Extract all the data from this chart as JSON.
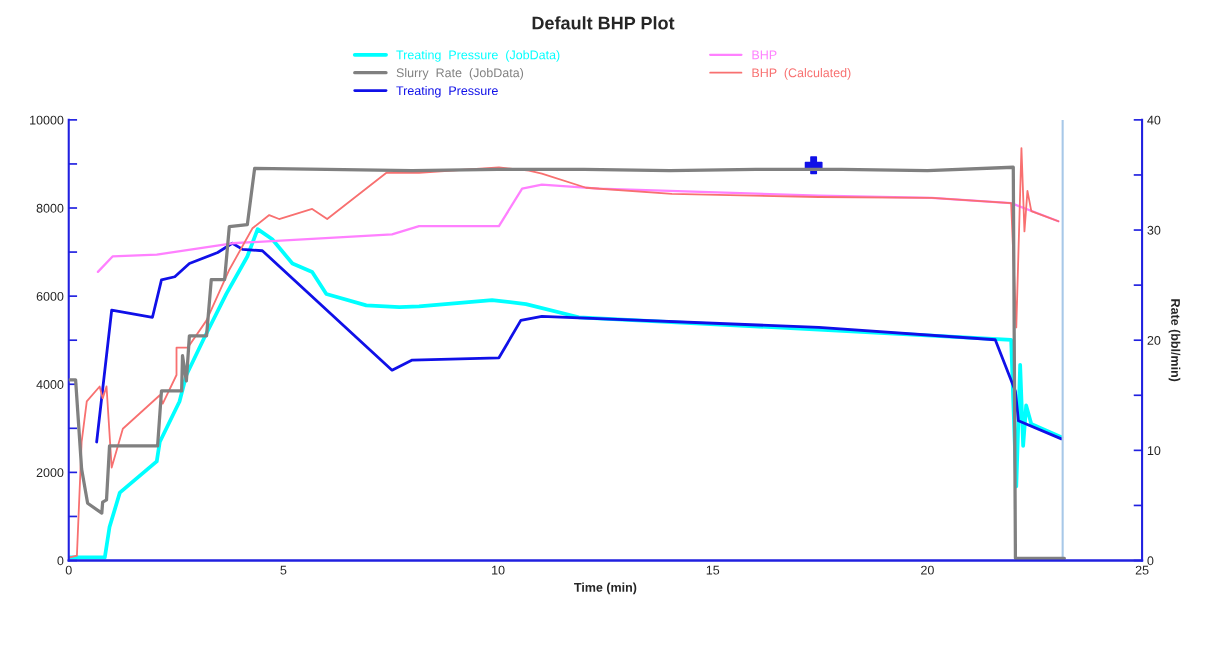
{
  "chart_data": {
    "type": "line",
    "title": "Default BHP Plot",
    "xlabel": "Time (min)",
    "y2label": "Rate (bbl/min)",
    "xlim": [
      0,
      25
    ],
    "xticks": [
      0,
      5,
      10,
      15,
      20,
      25
    ],
    "ylim": [
      0,
      10000
    ],
    "yticks": [
      0,
      {
        "value": 1000,
        "label": null
      },
      2000,
      {
        "value": 3000,
        "label": null
      },
      4000,
      {
        "value": 5000,
        "label": null
      },
      6000,
      {
        "value": 7000,
        "label": null
      },
      8000,
      {
        "value": 9000,
        "label": null
      },
      10000
    ],
    "y2lim": [
      0,
      40
    ],
    "y2ticks": [
      0,
      {
        "value": 5,
        "label": null
      },
      10,
      {
        "value": 15,
        "label": null
      },
      20,
      {
        "value": 25,
        "label": null
      },
      30,
      {
        "value": 35,
        "label": null
      },
      40
    ],
    "legend": "top",
    "grid": false,
    "marker": "none",
    "ref_lines": [
      {
        "axis": "x",
        "value": 23.15,
        "color": "#a8c8e8"
      }
    ],
    "series": [
      {
        "name": "Treating  Pressure  (JobData)",
        "color": "#00ffff",
        "x": [
          0.02,
          0.84,
          0.95,
          1.19,
          2.05,
          2.12,
          2.58,
          2.74,
          3.16,
          3.67,
          4.16,
          4.4,
          4.74,
          5.21,
          5.67,
          6.0,
          6.93,
          7.7,
          8.16,
          9.86,
          10.65,
          11.88,
          17.47,
          21.95,
          22.07,
          22.16,
          22.23,
          22.3,
          22.42,
          23.12
        ],
        "values": [
          70,
          70,
          760,
          1540,
          2250,
          2690,
          3610,
          4210,
          5060,
          6050,
          6900,
          7520,
          7290,
          6740,
          6550,
          6050,
          5790,
          5750,
          5770,
          5910,
          5820,
          5520,
          5240,
          5010,
          1680,
          4440,
          2600,
          3520,
          3100,
          2800
        ]
      },
      {
        "name": "Slurry  Rate  (JobData)",
        "color": "#808080",
        "axis": "y2",
        "x": [
          0.02,
          0.16,
          0.3,
          0.44,
          0.77,
          0.79,
          0.88,
          0.95,
          2.07,
          2.16,
          2.63,
          2.65,
          2.74,
          2.81,
          3.21,
          3.32,
          3.63,
          3.74,
          4.16,
          4.33,
          6.0,
          8.0,
          10.0,
          12.0,
          14.0,
          16.0,
          18.0,
          20.0,
          22.0,
          22.05,
          23.19
        ],
        "values": [
          16.4,
          16.4,
          8.3,
          5.2,
          4.3,
          5.3,
          5.5,
          10.4,
          10.4,
          15.4,
          15.4,
          18.6,
          16.3,
          20.4,
          20.4,
          25.5,
          25.5,
          30.3,
          30.5,
          35.6,
          35.5,
          35.4,
          35.5,
          35.5,
          35.4,
          35.5,
          35.5,
          35.4,
          35.7,
          0.2,
          0.2
        ]
      },
      {
        "name": "Treating  Pressure",
        "color": "#1010e8",
        "x": [
          0.65,
          1.0,
          1.95,
          2.16,
          2.47,
          2.81,
          3.47,
          3.81,
          4.05,
          4.51,
          7.53,
          8.0,
          10.02,
          10.53,
          11.02,
          17.47,
          21.58,
          22.05,
          22.12,
          23.12
        ],
        "values": [
          2690,
          5680,
          5520,
          6370,
          6440,
          6740,
          6990,
          7200,
          7060,
          7030,
          4320,
          4550,
          4600,
          5450,
          5540,
          5290,
          5010,
          3840,
          3170,
          2760
        ]
      },
      {
        "name": "BHP",
        "color": "#ff80ff",
        "x": [
          0.68,
          1.02,
          2.05,
          3.81,
          7.53,
          8.16,
          10.02,
          10.56,
          11.02,
          12.35,
          17.47,
          20.1,
          21.95,
          23.05
        ],
        "values": [
          6550,
          6900,
          6940,
          7200,
          7400,
          7590,
          7590,
          8440,
          8530,
          8440,
          8280,
          8230,
          8110,
          7700
        ]
      },
      {
        "name": "BHP  (Calculated)",
        "color": "#f87070",
        "x": [
          0.02,
          0.19,
          0.3,
          0.42,
          0.72,
          0.79,
          0.88,
          1.0,
          1.26,
          2.12,
          2.19,
          2.51,
          2.51,
          2.77,
          3.21,
          3.74,
          4.28,
          4.67,
          4.9,
          5.67,
          6.02,
          7.4,
          8.16,
          10.02,
          10.72,
          11.02,
          12.05,
          14.05,
          17.47,
          20.1,
          21.95,
          22.07,
          22.19,
          22.26,
          22.33,
          22.42,
          23.05
        ],
        "values": [
          70,
          110,
          2690,
          3610,
          3950,
          3680,
          3950,
          2110,
          2990,
          3750,
          3560,
          4210,
          4830,
          4830,
          5450,
          6600,
          7540,
          7840,
          7750,
          7980,
          7750,
          8800,
          8800,
          8920,
          8850,
          8780,
          8460,
          8320,
          8250,
          8230,
          8110,
          5290,
          9360,
          7470,
          8390,
          7930,
          7700
        ]
      },
      {
        "type": "scatter",
        "color": "#1010e8",
        "marker": "cross",
        "x": [
          17.35
        ],
        "values": [
          8970
        ]
      }
    ]
  }
}
